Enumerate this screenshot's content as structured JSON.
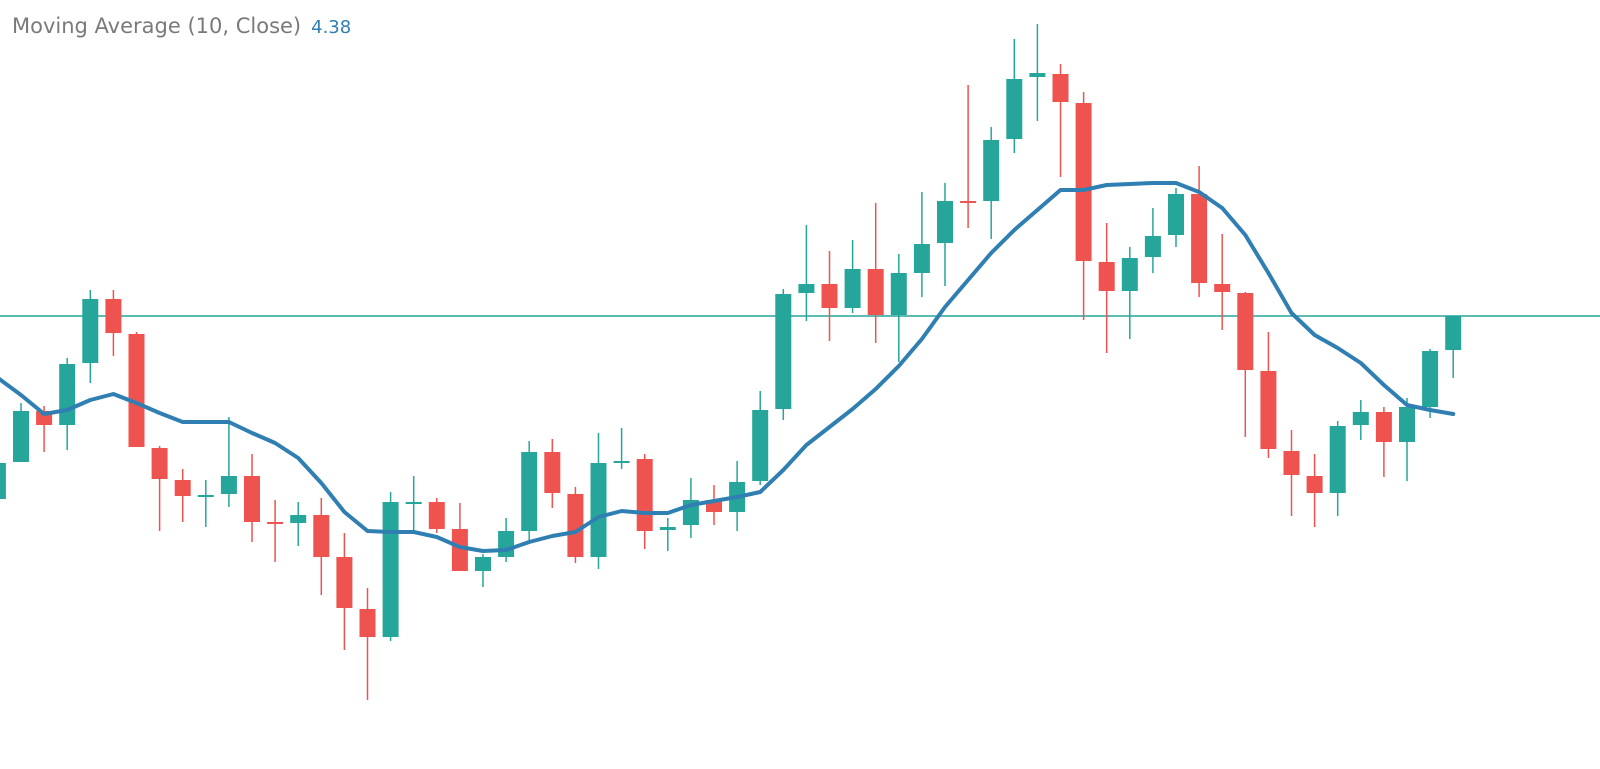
{
  "legend": {
    "label": "Moving Average (10, Close)",
    "value": "4.38"
  },
  "colors": {
    "up": "#26a69a",
    "down": "#ef5350",
    "ma_line": "#2f7fb3",
    "last_price_line": "#26a69a",
    "background": "#ffffff"
  },
  "chart_data": {
    "type": "candlestick",
    "title": "",
    "indicator": "Moving Average (10, Close)",
    "indicator_last_value": 4.38,
    "ylim": [
      0.83,
      8.52
    ],
    "grid": false,
    "last_price_line": 5.36,
    "ohlc_format": [
      "open",
      "high",
      "low",
      "close"
    ],
    "candles": [
      [
        3.53,
        3.92,
        3.52,
        3.89
      ],
      [
        3.9,
        4.49,
        3.9,
        4.41
      ],
      [
        4.41,
        4.46,
        4.0,
        4.27
      ],
      [
        4.27,
        4.94,
        4.02,
        4.88
      ],
      [
        4.89,
        5.62,
        4.69,
        5.53
      ],
      [
        5.53,
        5.62,
        4.96,
        5.19
      ],
      [
        5.18,
        5.2,
        4.05,
        4.05
      ],
      [
        4.04,
        4.06,
        3.21,
        3.73
      ],
      [
        3.72,
        3.83,
        3.3,
        3.56
      ],
      [
        3.56,
        3.72,
        3.25,
        3.57
      ],
      [
        3.58,
        4.35,
        3.45,
        3.76
      ],
      [
        3.76,
        3.98,
        3.1,
        3.3
      ],
      [
        3.3,
        3.52,
        2.9,
        3.29
      ],
      [
        3.29,
        3.5,
        3.06,
        3.37
      ],
      [
        3.37,
        3.54,
        2.57,
        2.95
      ],
      [
        2.95,
        3.19,
        2.02,
        2.44
      ],
      [
        2.43,
        2.64,
        1.52,
        2.15
      ],
      [
        2.15,
        3.6,
        2.11,
        3.5
      ],
      [
        3.49,
        3.76,
        3.22,
        3.5
      ],
      [
        3.5,
        3.54,
        3.19,
        3.23
      ],
      [
        3.23,
        3.49,
        2.81,
        2.81
      ],
      [
        2.81,
        2.98,
        2.65,
        2.95
      ],
      [
        2.95,
        3.34,
        2.9,
        3.21
      ],
      [
        3.21,
        4.11,
        3.1,
        4.0
      ],
      [
        4.0,
        4.13,
        3.44,
        3.59
      ],
      [
        3.58,
        3.65,
        2.89,
        2.95
      ],
      [
        2.95,
        4.19,
        2.83,
        3.89
      ],
      [
        3.9,
        4.24,
        3.83,
        3.91
      ],
      [
        3.93,
        3.98,
        3.03,
        3.21
      ],
      [
        3.22,
        3.34,
        3.01,
        3.25
      ],
      [
        3.27,
        3.74,
        3.14,
        3.52
      ],
      [
        3.52,
        3.67,
        3.27,
        3.4
      ],
      [
        3.4,
        3.91,
        3.21,
        3.7
      ],
      [
        3.71,
        4.61,
        3.67,
        4.42
      ],
      [
        4.43,
        5.63,
        4.32,
        5.58
      ],
      [
        5.59,
        6.27,
        5.31,
        5.68
      ],
      [
        5.68,
        6.01,
        5.11,
        5.44
      ],
      [
        5.44,
        6.12,
        5.39,
        5.83
      ],
      [
        5.83,
        6.49,
        5.09,
        5.37
      ],
      [
        5.37,
        5.98,
        4.9,
        5.79
      ],
      [
        5.79,
        6.6,
        5.55,
        6.08
      ],
      [
        6.09,
        6.69,
        5.66,
        6.51
      ],
      [
        6.51,
        7.67,
        6.24,
        6.5
      ],
      [
        6.51,
        7.25,
        6.13,
        7.12
      ],
      [
        7.13,
        8.13,
        6.99,
        7.73
      ],
      [
        7.75,
        8.28,
        7.31,
        7.79
      ],
      [
        7.78,
        7.88,
        6.75,
        7.5
      ],
      [
        7.49,
        7.6,
        5.32,
        5.91
      ],
      [
        5.9,
        6.29,
        4.99,
        5.61
      ],
      [
        5.61,
        6.05,
        5.13,
        5.94
      ],
      [
        5.95,
        6.44,
        5.79,
        6.16
      ],
      [
        6.17,
        6.64,
        6.05,
        6.58
      ],
      [
        6.58,
        6.86,
        5.55,
        5.69
      ],
      [
        5.68,
        6.18,
        5.22,
        5.6
      ],
      [
        5.59,
        5.6,
        4.15,
        4.82
      ],
      [
        4.81,
        5.2,
        3.94,
        4.03
      ],
      [
        4.01,
        4.22,
        3.36,
        3.77
      ],
      [
        3.76,
        3.98,
        3.25,
        3.59
      ],
      [
        3.59,
        4.31,
        3.36,
        4.26
      ],
      [
        4.27,
        4.52,
        4.12,
        4.4
      ],
      [
        4.4,
        4.45,
        3.75,
        4.1
      ],
      [
        4.1,
        4.54,
        3.71,
        4.45
      ],
      [
        4.45,
        5.03,
        4.34,
        5.01
      ],
      [
        5.02,
        5.36,
        4.74,
        5.36
      ]
    ],
    "moving_average": [
      4.74,
      4.57,
      4.38,
      4.42,
      4.52,
      4.58,
      4.49,
      4.39,
      4.3,
      4.3,
      4.3,
      4.19,
      4.09,
      3.94,
      3.69,
      3.4,
      3.21,
      3.2,
      3.2,
      3.15,
      3.05,
      3.01,
      3.02,
      3.1,
      3.16,
      3.2,
      3.35,
      3.41,
      3.39,
      3.39,
      3.47,
      3.51,
      3.55,
      3.6,
      3.82,
      4.07,
      4.25,
      4.43,
      4.63,
      4.86,
      5.13,
      5.45,
      5.72,
      5.99,
      6.22,
      6.42,
      6.62,
      6.62,
      6.67,
      6.68,
      6.69,
      6.69,
      6.6,
      6.44,
      6.17,
      5.79,
      5.39,
      5.17,
      5.04,
      4.89,
      4.67,
      4.47,
      4.42,
      4.38
    ]
  }
}
